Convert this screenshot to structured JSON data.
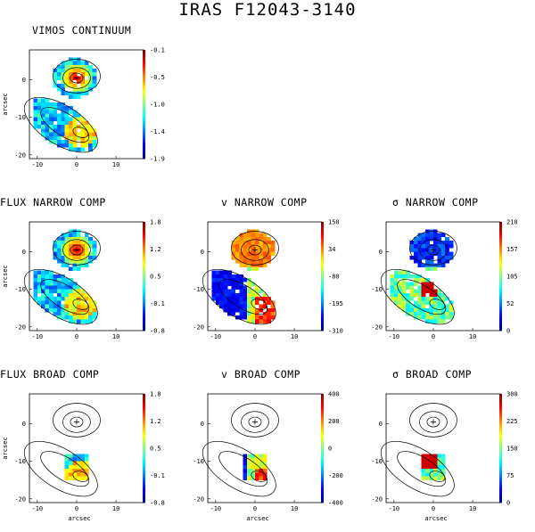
{
  "title": "IRAS F12043-3140",
  "axis_label": "arcsec",
  "x_ticks": [
    "-10",
    "0",
    "10"
  ],
  "y_ticks": [
    "0",
    "-10",
    "-20"
  ],
  "colormap": [
    "#00008f",
    "#0000ff",
    "#0080ff",
    "#00ffff",
    "#80ff80",
    "#ffff00",
    "#ff8000",
    "#ff0000",
    "#800000"
  ],
  "panels": [
    {
      "title": "VIMOS CONTINUUM",
      "cbar": [
        "-0.1",
        "-0.5",
        "-1.0",
        "-1.4",
        "-1.9"
      ],
      "coverage": "full",
      "base": "blue"
    },
    {
      "title": "FLUX NARROW COMP",
      "cbar": [
        "1.8",
        "1.2",
        "0.5",
        "-0.1",
        "-0.8"
      ],
      "coverage": "full",
      "base": "blue"
    },
    {
      "title": "v NARROW COMP",
      "cbar": [
        "150",
        "34",
        "-80",
        "-195",
        "-310"
      ],
      "coverage": "full",
      "base": "velocity"
    },
    {
      "title": "σ NARROW COMP",
      "cbar": [
        "210",
        "157",
        "105",
        "52",
        "0"
      ],
      "coverage": "full",
      "base": "sigma"
    },
    {
      "title": "FLUX BROAD COMP",
      "cbar": [
        "1.8",
        "1.2",
        "0.5",
        "-0.1",
        "-0.8"
      ],
      "coverage": "core",
      "base": "blue"
    },
    {
      "title": "v BROAD COMP",
      "cbar": [
        "400",
        "200",
        "0",
        "-200",
        "-400"
      ],
      "coverage": "core",
      "base": "velocity"
    },
    {
      "title": "σ BROAD COMP",
      "cbar": [
        "300",
        "225",
        "150",
        "75",
        "0"
      ],
      "coverage": "core",
      "base": "sigma"
    }
  ]
}
